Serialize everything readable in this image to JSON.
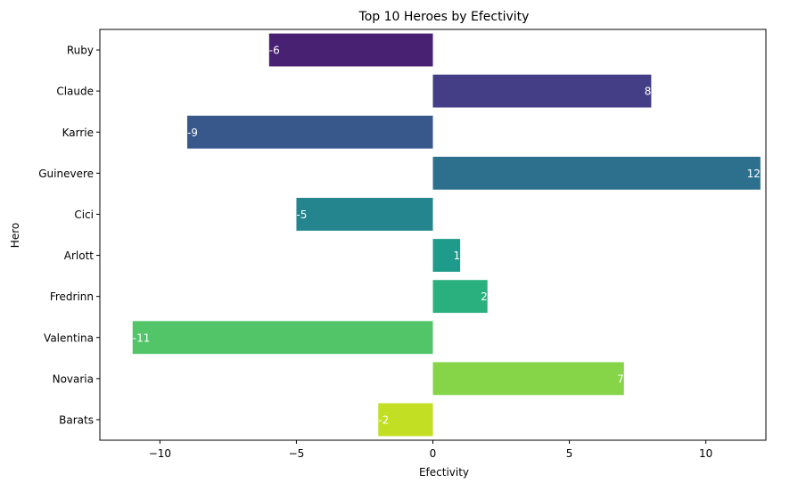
{
  "chart_data": {
    "type": "bar",
    "orientation": "horizontal",
    "title": "Top 10 Heroes by Efectivity",
    "xlabel": "Efectivity",
    "ylabel": "Hero",
    "categories": [
      "Ruby",
      "Claude",
      "Karrie",
      "Guinevere",
      "Cici",
      "Arlott",
      "Fredrinn",
      "Valentina",
      "Novaria",
      "Barats"
    ],
    "values": [
      -6,
      8,
      -9,
      12,
      -5,
      1,
      2,
      -11,
      7,
      -2
    ],
    "data_labels": [
      "-6",
      "8",
      "-9",
      "12",
      "-5",
      "1",
      "2",
      "-11",
      "7",
      "-2"
    ],
    "colors": [
      "#482173",
      "#433e85",
      "#38588c",
      "#2d708e",
      "#25858e",
      "#1e9b8a",
      "#2ab07f",
      "#52c569",
      "#86d549",
      "#c2df23"
    ],
    "xlim": [
      -12.2,
      12.2
    ],
    "xticks": [
      -10,
      -5,
      0,
      5,
      10
    ],
    "xtick_labels": [
      "−10",
      "−5",
      "0",
      "5",
      "10"
    ],
    "grid": false,
    "legend": "none"
  }
}
